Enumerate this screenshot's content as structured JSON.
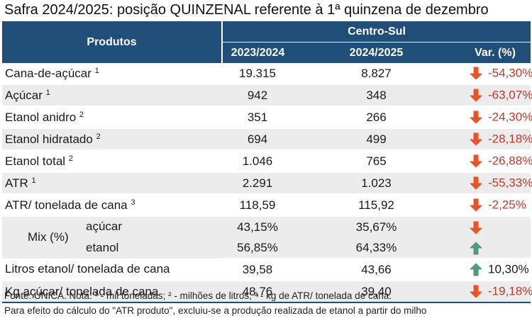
{
  "title": "Safra 2024/2025: posição QUINZENAL referente à 1ª quinzena de dezembro",
  "header": {
    "produtos": "Produtos",
    "region": "Centro-Sul",
    "col1": "2023/2024",
    "col2": "2024/2025",
    "col3": "Var. (%)"
  },
  "rows": [
    {
      "name": "Cana-de-açúcar",
      "sup": "1",
      "v1": "19.315",
      "v2": "8.827",
      "var": "-54,30%",
      "dir": "down"
    },
    {
      "name": "Açúcar",
      "sup": "1",
      "v1": "942",
      "v2": "348",
      "var": "-63,07%",
      "dir": "down"
    },
    {
      "name": "Etanol anidro",
      "sup": "2",
      "v1": "351",
      "v2": "266",
      "var": "-24,30%",
      "dir": "down"
    },
    {
      "name": "Etanol hidratado",
      "sup": "2",
      "v1": "694",
      "v2": "499",
      "var": "-28,18%",
      "dir": "down"
    },
    {
      "name": "Etanol total",
      "sup": "2",
      "v1": "1.046",
      "v2": "765",
      "var": "-26,88%",
      "dir": "down"
    },
    {
      "name": "ATR",
      "sup": "1",
      "v1": "2.291",
      "v2": "1.023",
      "var": "-55,33%",
      "dir": "down"
    },
    {
      "name": "ATR/ tonelada de cana",
      "sup": "3",
      "v1": "118,59",
      "v2": "115,92",
      "var": "-2,25%",
      "dir": "down"
    }
  ],
  "mix": {
    "label": "Mix (%)",
    "acucar": {
      "name": "açúcar",
      "v1": "43,15%",
      "v2": "35,67%",
      "dir": "down"
    },
    "etanol": {
      "name": "etanol",
      "v1": "56,85%",
      "v2": "64,33%",
      "dir": "up"
    }
  },
  "rows2": [
    {
      "name": "Litros etanol/ tonelada de cana",
      "v1": "39,58",
      "v2": "43,66",
      "var": "10,30%",
      "dir": "up"
    },
    {
      "name": "Kg açúcar/ tonelada de cana",
      "v1": "48,76",
      "v2": "39,40",
      "var": "-19,18%",
      "dir": "down"
    }
  ],
  "notes": {
    "line1": "Fonte: UNICA. Nota: ¹ - mil toneladas; ² - milhões de litros; ³ - kg de ATR/ tonelada de cana.",
    "line2": "Para efeito do cálculo do \"ATR produto\", excluiu-se a produção realizada de etanol a partir do milho"
  },
  "colors": {
    "header": "#1f4e79",
    "down": "#e8532a",
    "up": "#4f9a7e",
    "neg_text": "#c0392b"
  },
  "icons": {
    "down": "arrow-down-icon",
    "up": "arrow-up-icon"
  }
}
